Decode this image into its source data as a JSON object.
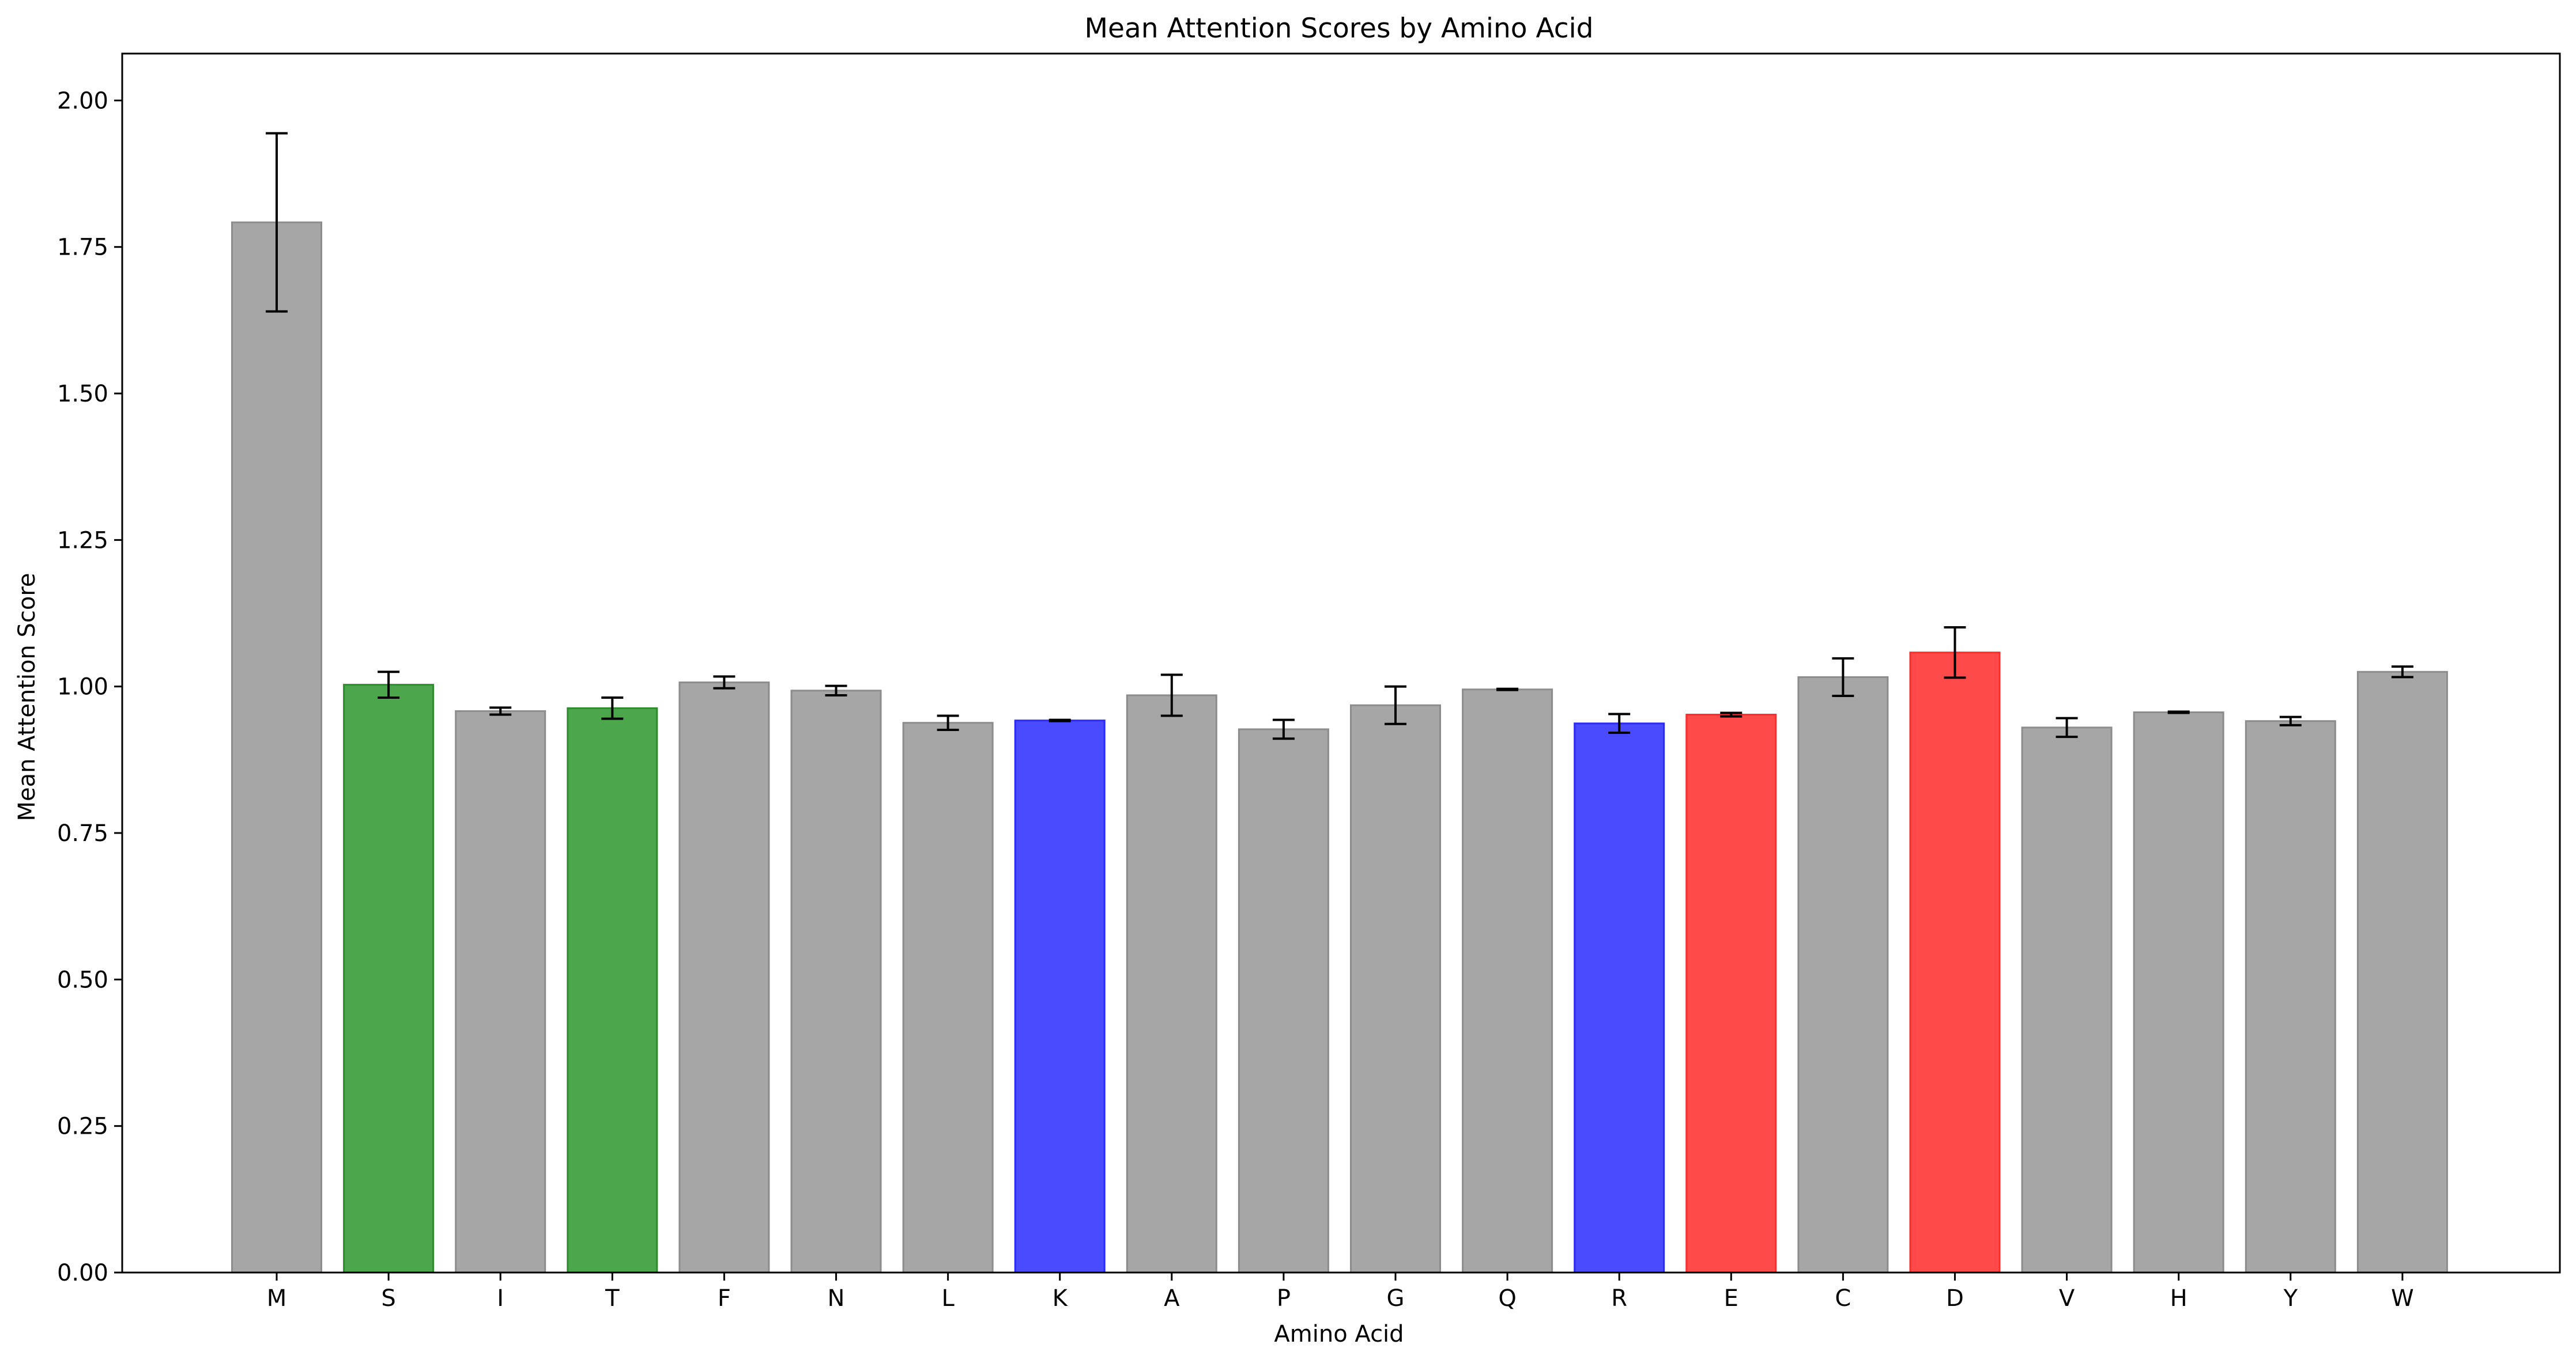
{
  "chart_data": {
    "type": "bar",
    "title": "Mean Attention Scores by Amino Acid",
    "xlabel": "Amino Acid",
    "ylabel": "Mean Attention Score",
    "ylim": [
      0,
      2.08
    ],
    "yticks": [
      "0.00",
      "0.25",
      "0.50",
      "0.75",
      "1.00",
      "1.25",
      "1.50",
      "1.75",
      "2.00"
    ],
    "grid": false,
    "legend": "none",
    "categories": [
      "M",
      "S",
      "I",
      "T",
      "F",
      "N",
      "L",
      "K",
      "A",
      "P",
      "G",
      "Q",
      "R",
      "E",
      "C",
      "D",
      "V",
      "H",
      "Y",
      "W"
    ],
    "values": [
      1.792,
      1.003,
      0.958,
      0.963,
      1.007,
      0.993,
      0.938,
      0.942,
      0.985,
      0.927,
      0.968,
      0.995,
      0.937,
      0.952,
      1.016,
      1.058,
      0.93,
      0.956,
      0.941,
      1.025
    ],
    "errors": [
      0.152,
      0.022,
      0.006,
      0.018,
      0.01,
      0.008,
      0.012,
      0.001,
      0.035,
      0.016,
      0.032,
      0.001,
      0.016,
      0.003,
      0.032,
      0.043,
      0.016,
      0.001,
      0.007,
      0.009
    ],
    "bar_colors": [
      "#a6a6a6",
      "#4ca64c",
      "#a6a6a6",
      "#4ca64c",
      "#a6a6a6",
      "#a6a6a6",
      "#a6a6a6",
      "#4a4aff",
      "#a6a6a6",
      "#a6a6a6",
      "#a6a6a6",
      "#a6a6a6",
      "#4a4aff",
      "#ff4a4a",
      "#a6a6a6",
      "#ff4a4a",
      "#a6a6a6",
      "#a6a6a6",
      "#a6a6a6",
      "#a6a6a6"
    ],
    "edge_colors": [
      "#8c8c8c",
      "#2e8b2e",
      "#8c8c8c",
      "#2e8b2e",
      "#8c8c8c",
      "#8c8c8c",
      "#8c8c8c",
      "#2a2aff",
      "#8c8c8c",
      "#8c8c8c",
      "#8c8c8c",
      "#8c8c8c",
      "#2a2aff",
      "#ff2a2a",
      "#8c8c8c",
      "#ff2a2a",
      "#8c8c8c",
      "#8c8c8c",
      "#8c8c8c",
      "#8c8c8c"
    ]
  }
}
